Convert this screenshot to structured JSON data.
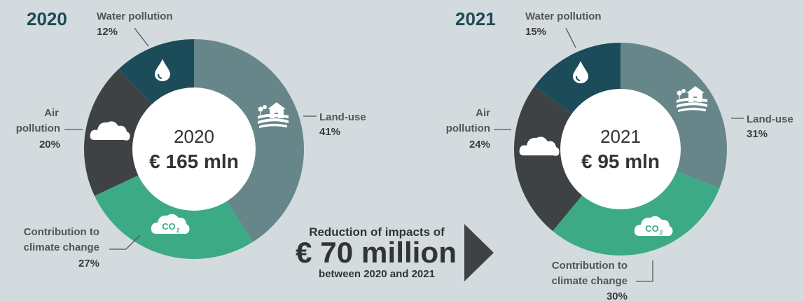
{
  "colors": {
    "background": "#d3dbde",
    "land_use": "#66868a",
    "contribution_climate_change": "#3daa86",
    "air_pollution": "#3f4245",
    "water_pollution": "#1c4b59",
    "title": "#1e4a55"
  },
  "chart_data": [
    {
      "type": "pie",
      "title": "2020",
      "center_label": "2020",
      "center_value": "€ 165 mln",
      "slices": [
        {
          "name": "Land-use",
          "value": 41,
          "percent": "41%",
          "icon": "farm-icon"
        },
        {
          "name": "Contribution to climate change",
          "value": 27,
          "percent": "27%",
          "icon": "co2-cloud-icon"
        },
        {
          "name": "Air pollution",
          "value": 20,
          "percent": "20%",
          "icon": "cloud-icon"
        },
        {
          "name": "Water pollution",
          "value": 12,
          "percent": "12%",
          "icon": "water-drop-icon"
        }
      ]
    },
    {
      "type": "pie",
      "title": "2021",
      "center_label": "2021",
      "center_value": "€ 95 mln",
      "slices": [
        {
          "name": "Land-use",
          "value": 31,
          "percent": "31%",
          "icon": "farm-icon"
        },
        {
          "name": "Contribution to climate change",
          "value": 30,
          "percent": "30%",
          "icon": "co2-cloud-icon"
        },
        {
          "name": "Air pollution",
          "value": 24,
          "percent": "24%",
          "icon": "cloud-icon"
        },
        {
          "name": "Water pollution",
          "value": 15,
          "percent": "15%",
          "icon": "water-drop-icon"
        }
      ]
    }
  ],
  "labels": {
    "water_pollution": "Water pollution",
    "land_use": "Land-use",
    "air_line1": "Air",
    "air_line2": "pollution",
    "climate_line1": "Contribution to",
    "climate_line2": "climate change",
    "co2": "CO",
    "co2_sub": "2"
  },
  "reduction": {
    "line1": "Reduction of impacts of",
    "amount": "€ 70 million",
    "line3": "between 2020 and 2021",
    "arrow_icon": "triangle-arrow-icon"
  }
}
